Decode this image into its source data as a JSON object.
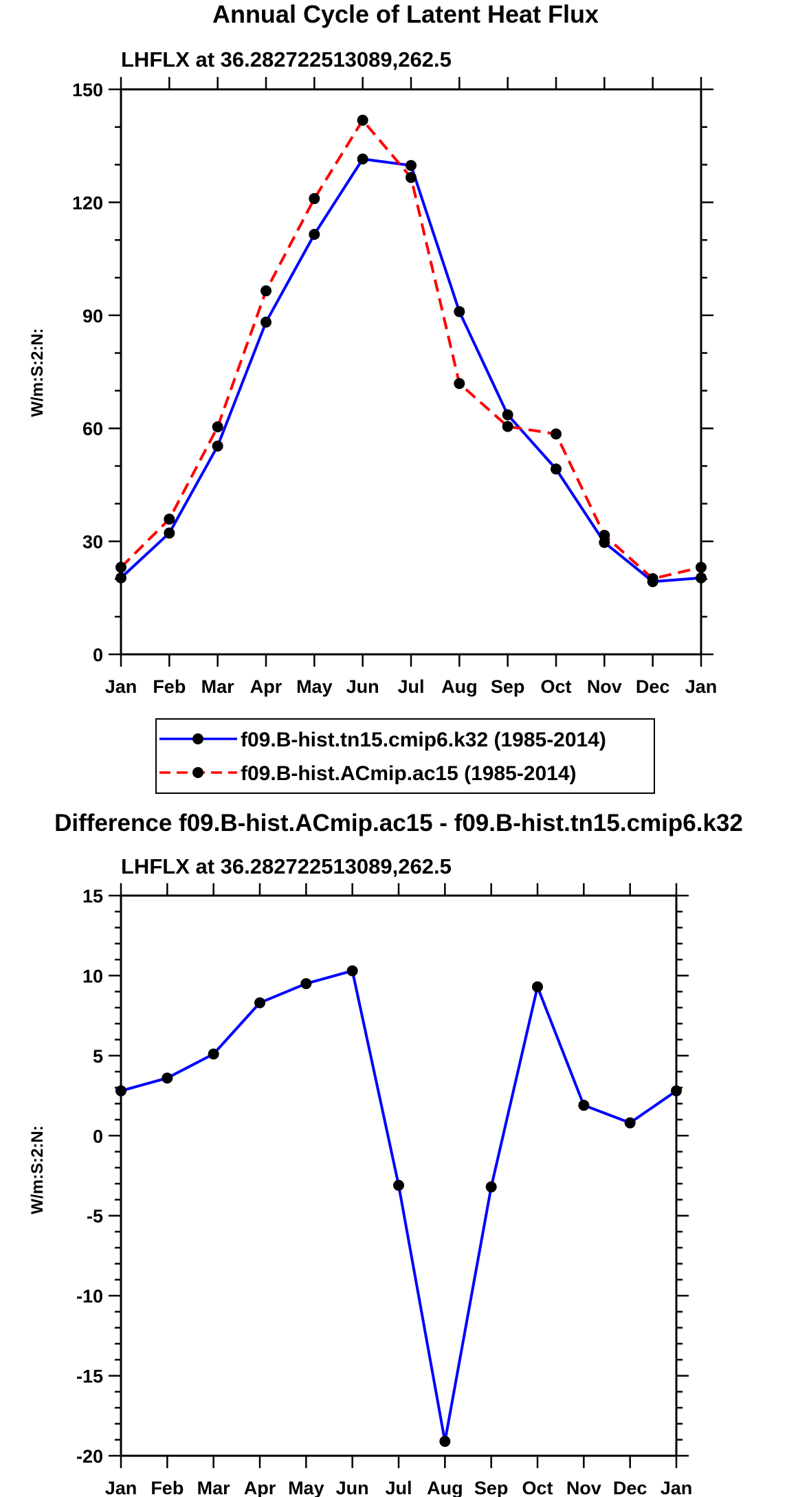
{
  "chart_data": [
    {
      "type": "line",
      "title": "Annual Cycle of Latent Heat Flux",
      "subtitle": "LHFLX at 36.282722513089,262.5",
      "xlabel": "",
      "ylabel": "W/m:S:2:N:",
      "categories": [
        "Jan",
        "Feb",
        "Mar",
        "Apr",
        "May",
        "Jun",
        "Jul",
        "Aug",
        "Sep",
        "Oct",
        "Nov",
        "Dec",
        "Jan"
      ],
      "ylim": [
        0,
        150
      ],
      "yticks": [
        "0",
        "30",
        "60",
        "90",
        "120",
        "150"
      ],
      "series": [
        {
          "name": "f09.B-hist.tn15.cmip6.k32 (1985-2014)",
          "color": "#0000ff",
          "dash": "solid",
          "values": [
            20.3,
            32.2,
            55.3,
            88.2,
            111.5,
            131.5,
            129.8,
            91.0,
            63.6,
            49.2,
            29.7,
            19.3,
            20.3
          ]
        },
        {
          "name": "f09.B-hist.ACmip.ac15 (1985-2014)",
          "color": "#ff0000",
          "dash": "dashed",
          "values": [
            23.1,
            35.9,
            60.4,
            96.5,
            121.0,
            141.8,
            126.6,
            71.9,
            60.5,
            58.5,
            31.6,
            20.1,
            23.1
          ]
        }
      ],
      "legend_position": "below"
    },
    {
      "type": "line",
      "title": "Difference f09.B-hist.ACmip.ac15 - f09.B-hist.tn15.cmip6.k32",
      "subtitle": "LHFLX at 36.282722513089,262.5",
      "xlabel": "",
      "ylabel": "W/m:S:2:N:",
      "categories": [
        "Jan",
        "Feb",
        "Mar",
        "Apr",
        "May",
        "Jun",
        "Jul",
        "Aug",
        "Sep",
        "Oct",
        "Nov",
        "Dec",
        "Jan"
      ],
      "ylim": [
        -20,
        15
      ],
      "yticks": [
        "-20",
        "-15",
        "-10",
        "-5",
        "0",
        "5",
        "10",
        "15"
      ],
      "series": [
        {
          "name": "Difference",
          "color": "#0000ff",
          "dash": "solid",
          "values": [
            2.8,
            3.6,
            5.1,
            8.3,
            9.5,
            10.3,
            -3.1,
            -19.1,
            -3.2,
            9.3,
            1.9,
            0.8,
            2.8
          ]
        }
      ]
    }
  ]
}
